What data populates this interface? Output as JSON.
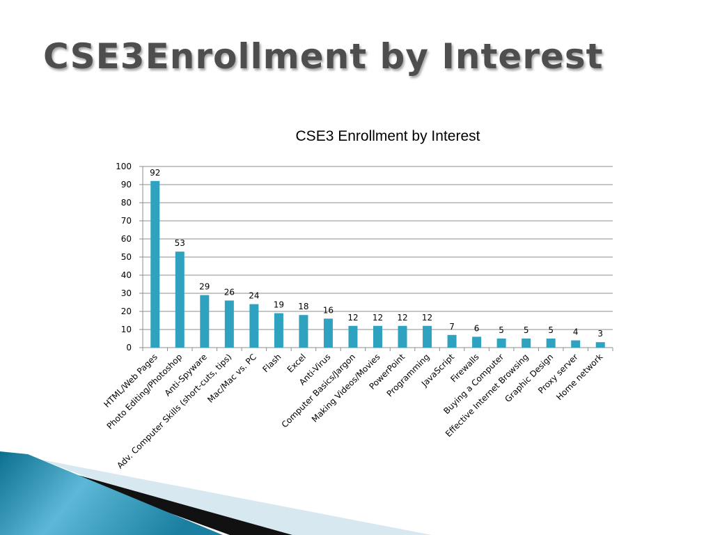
{
  "slide": {
    "title": "CSE3Enrollment by Interest"
  },
  "colors": {
    "bar": "#2fa2c0",
    "gridline": "#8c8c8c",
    "axis": "#8c8c8c",
    "title_text": "#4e4e4e",
    "swoosh_dark": "#0d6f8f",
    "swoosh_light": "#5cb8d6",
    "swoosh_black": "#111111",
    "swoosh_pale": "#d8e8f0"
  },
  "chart_data": {
    "type": "bar",
    "title": "CSE3 Enrollment by Interest",
    "xlabel": "",
    "ylabel": "",
    "ylim": [
      0,
      100
    ],
    "yticks": [
      0,
      10,
      20,
      30,
      40,
      50,
      60,
      70,
      80,
      90,
      100
    ],
    "grid": true,
    "legend": "none",
    "categories": [
      "HTML/Web Pages",
      "Photo Editing/Photoshop",
      "Anti-Spyware",
      "Adv. Computer Skills (short-cuts, tips)",
      "Mac/Mac vs. PC",
      "Flash",
      "Excel",
      "Anti-Virus",
      "Computer Basics/Jargon",
      "Making Videos/Movies",
      "PowerPoint",
      "Programming",
      "JavaScript",
      "Firewalls",
      "Buying a Computer",
      "Effective Internet Browsing",
      "Graphic Design",
      "Proxy server",
      "Home network"
    ],
    "values": [
      92,
      53,
      29,
      26,
      24,
      19,
      18,
      16,
      12,
      12,
      12,
      12,
      7,
      6,
      5,
      5,
      5,
      4,
      3
    ]
  }
}
